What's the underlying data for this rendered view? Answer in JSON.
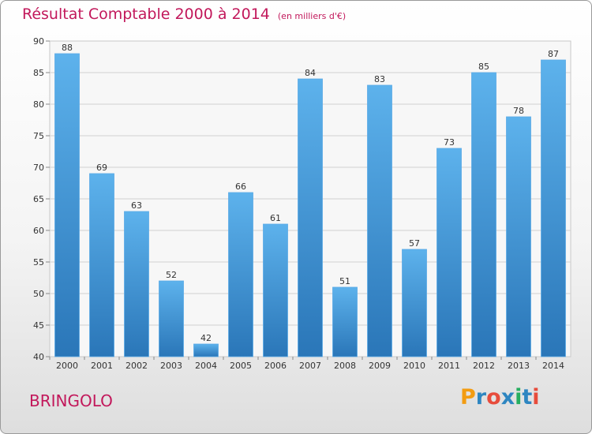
{
  "title": "Résultat Comptable 2000 à 2014",
  "subtitle": "(en milliers d'€)",
  "place": "BRINGOLO",
  "brand": {
    "letters": [
      "P",
      "r",
      "o",
      "x",
      "i",
      "t",
      "i"
    ],
    "colors": [
      "#f39c12",
      "#2e86c1",
      "#e74c3c",
      "#2e86c1",
      "#27ae60",
      "#2e86c1",
      "#e74c3c"
    ]
  },
  "chart_data": {
    "type": "bar",
    "categories": [
      "2000",
      "2001",
      "2002",
      "2003",
      "2004",
      "2005",
      "2006",
      "2007",
      "2008",
      "2009",
      "2010",
      "2011",
      "2012",
      "2013",
      "2014"
    ],
    "values": [
      88,
      69,
      63,
      52,
      42,
      66,
      61,
      84,
      51,
      83,
      57,
      73,
      85,
      78,
      87
    ],
    "ylim": [
      40,
      90
    ],
    "yticks": [
      40,
      45,
      50,
      55,
      60,
      65,
      70,
      75,
      80,
      85,
      90
    ],
    "grid": true,
    "bar_color": "#3a8fd6"
  }
}
